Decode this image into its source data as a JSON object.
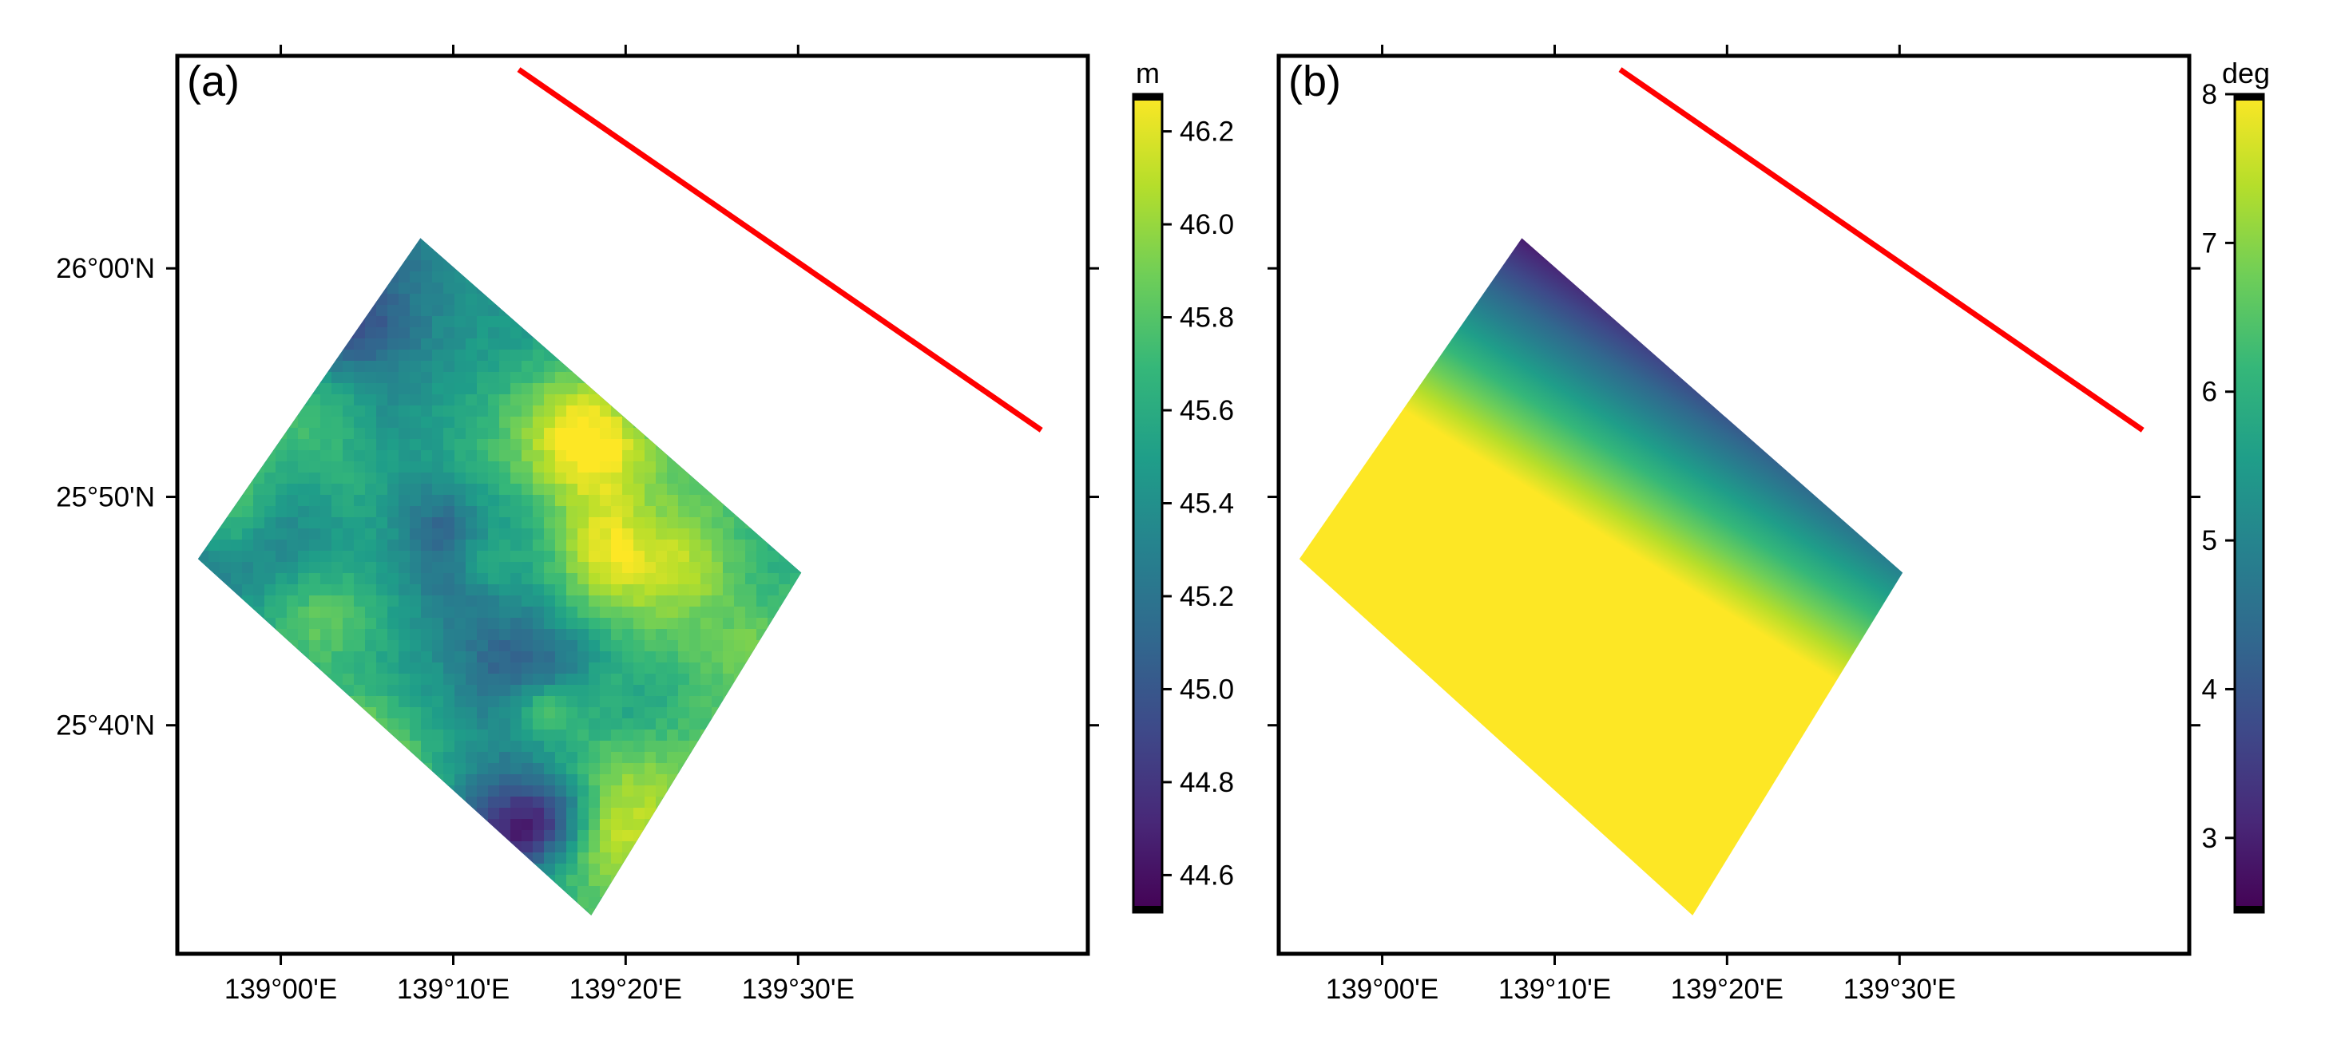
{
  "chart_data": [
    {
      "type": "heatmap",
      "panel_label": "(a)",
      "x_ticks": [
        "139°00'E",
        "139°10'E",
        "139°20'E",
        "139°30'E"
      ],
      "x_tick_values_deg": [
        139.0,
        139.1667,
        139.3333,
        139.5
      ],
      "y_ticks": [
        "26°00'N",
        "25°50'N",
        "25°40'N"
      ],
      "y_tick_values_deg": [
        26.0,
        25.8333,
        25.6667
      ],
      "xlim_deg": [
        138.9,
        139.78
      ],
      "ylim_deg": [
        25.5,
        26.155
      ],
      "footprint_corners_deg": [
        [
          139.135,
          26.022
        ],
        [
          139.503,
          25.778
        ],
        [
          139.3,
          25.528
        ],
        [
          138.92,
          25.788
        ]
      ],
      "track_line_deg": [
        [
          139.23,
          26.145
        ],
        [
          139.735,
          25.882
        ]
      ],
      "field": "noisy",
      "colorbar": {
        "title": "m",
        "min": 44.52,
        "max": 46.28,
        "ticks": [
          44.6,
          44.8,
          45.0,
          45.2,
          45.4,
          45.6,
          45.8,
          46.0,
          46.2
        ],
        "tick_labels": [
          "44.6",
          "44.8",
          "45.0",
          "45.2",
          "45.4",
          "45.6",
          "45.8",
          "46.0",
          "46.2"
        ]
      }
    },
    {
      "type": "heatmap",
      "panel_label": "(b)",
      "x_ticks": [
        "139°00'E",
        "139°10'E",
        "139°20'E",
        "139°30'E"
      ],
      "x_tick_values_deg": [
        139.0,
        139.1667,
        139.3333,
        139.5
      ],
      "y_ticks": [],
      "y_tick_values_deg": [
        26.0,
        25.8333,
        25.6667
      ],
      "xlim_deg": [
        138.9,
        139.78
      ],
      "ylim_deg": [
        25.5,
        26.155
      ],
      "footprint_corners_deg": [
        [
          139.135,
          26.022
        ],
        [
          139.503,
          25.778
        ],
        [
          139.3,
          25.528
        ],
        [
          138.92,
          25.788
        ]
      ],
      "track_line_deg": [
        [
          139.23,
          26.145
        ],
        [
          139.735,
          25.882
        ]
      ],
      "field": "gradient",
      "colorbar": {
        "title": "deg",
        "min": 2.5,
        "max": 8.0,
        "ticks": [
          3,
          4,
          5,
          6,
          7,
          8
        ],
        "tick_labels": [
          "3",
          "4",
          "5",
          "6",
          "7",
          "8"
        ]
      }
    }
  ],
  "colors": {
    "track_line": "#ff0000",
    "frame": "#000000",
    "colormap": [
      "#440154",
      "#482878",
      "#3e4989",
      "#31688e",
      "#26828e",
      "#1f9e89",
      "#35b779",
      "#6ece58",
      "#b5de2b",
      "#fde725"
    ]
  }
}
